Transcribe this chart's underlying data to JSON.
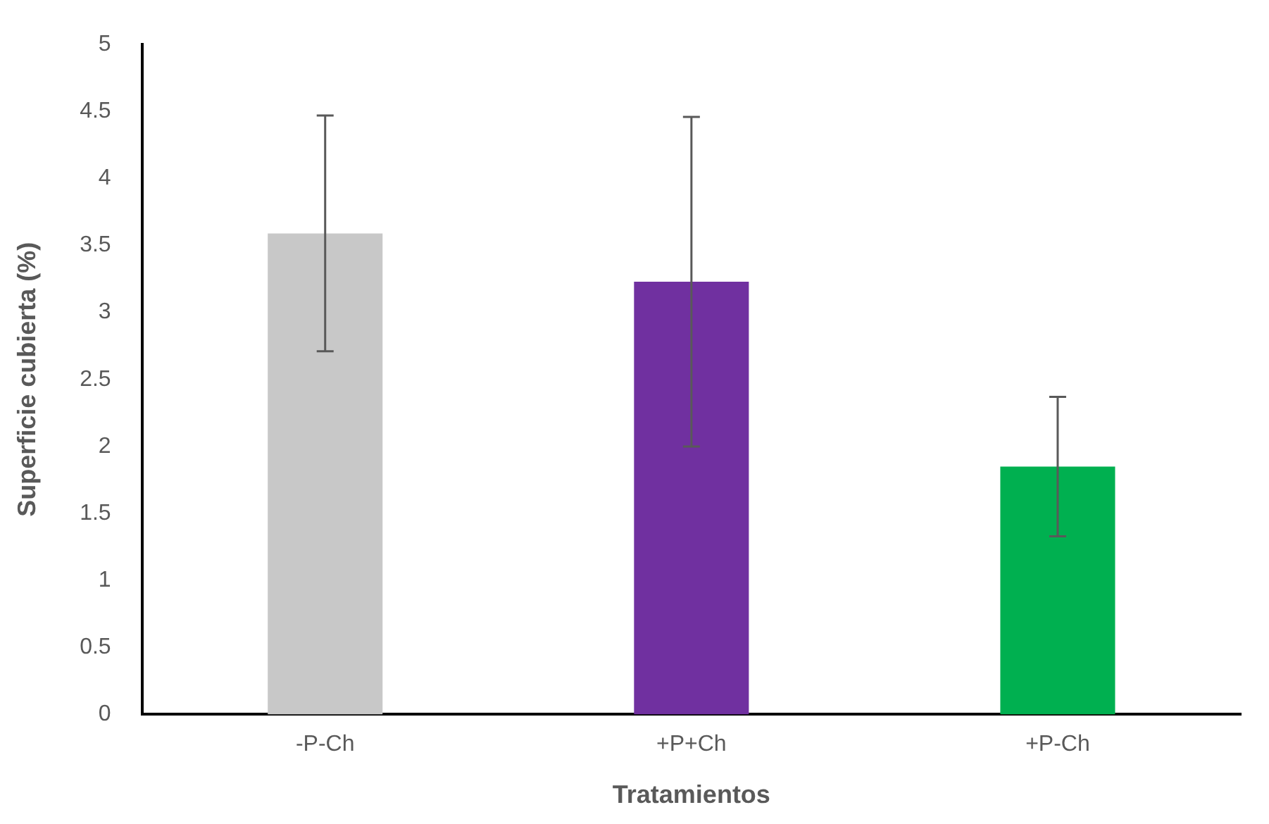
{
  "chart_data": {
    "type": "bar",
    "xlabel": "Tratamientos",
    "ylabel": "Superficie cubierta (%)",
    "categories": [
      "-P-Ch",
      "+P+Ch",
      "+P-Ch"
    ],
    "values": [
      3.59,
      3.23,
      1.85
    ],
    "errors": [
      0.88,
      1.23,
      0.52
    ],
    "colors": [
      "#c8c8c8",
      "#7030a0",
      "#00b050"
    ],
    "ylim": [
      0,
      5
    ],
    "yticks": [
      0,
      0.5,
      1,
      1.5,
      2,
      2.5,
      3,
      3.5,
      4,
      4.5,
      5
    ],
    "grid": false,
    "legend": false
  }
}
